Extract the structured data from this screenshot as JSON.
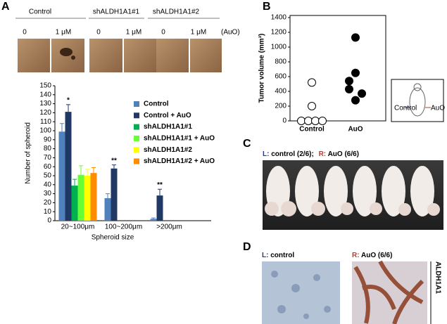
{
  "panel_labels": [
    "A",
    "B",
    "C",
    "D"
  ],
  "panel_a": {
    "groups": [
      {
        "label": "Control",
        "doses": [
          "0",
          "1 μM"
        ]
      },
      {
        "label": "shALDH1A1#1",
        "doses": [
          "0",
          "1 μM"
        ]
      },
      {
        "label": "shALDH1A1#2",
        "doses": [
          "0",
          "1 μM"
        ]
      }
    ],
    "treatment": "(AuO)"
  },
  "chart_data": [
    {
      "type": "bar",
      "y_label": "Number of spheroid",
      "x_label": "Spheroid size",
      "categories": [
        "20~100μm",
        "100~200μm",
        ">200μm"
      ],
      "annotations": [
        "*",
        "**",
        "**"
      ],
      "ylim": [
        0,
        150
      ],
      "yticks": [
        0,
        10,
        20,
        30,
        40,
        50,
        60,
        70,
        80,
        90,
        100,
        110,
        120,
        130,
        140,
        150
      ],
      "series": [
        {
          "name": "Control",
          "color": "#4f81bd",
          "values": [
            99,
            25,
            2
          ],
          "errors": [
            9,
            5,
            1
          ]
        },
        {
          "name": "Control + AuO",
          "color": "#1f3864",
          "values": [
            121,
            58,
            28
          ],
          "errors": [
            8,
            4,
            7
          ]
        },
        {
          "name": "shALDH1A1#1",
          "color": "#00b050",
          "values": [
            39,
            null,
            null
          ],
          "errors": [
            7,
            null,
            null
          ]
        },
        {
          "name": "shALDH1A1#1 + AuO",
          "color": "#66ff33",
          "values": [
            51,
            null,
            null
          ],
          "errors": [
            10,
            null,
            null
          ]
        },
        {
          "name": "shALDH1A1#2",
          "color": "#ffff00",
          "values": [
            50,
            null,
            null
          ],
          "errors": [
            7,
            null,
            null
          ]
        },
        {
          "name": "shALDH1A1#2 + AuO",
          "color": "#ff8c00",
          "values": [
            53,
            null,
            null
          ],
          "errors": [
            6,
            null,
            null
          ]
        }
      ]
    },
    {
      "type": "dot",
      "y_label": "Tumor volume (mm³)",
      "categories": [
        "Control",
        "AuO"
      ],
      "values": [
        [
          520,
          200,
          0,
          0,
          0,
          0
        ],
        [
          1130,
          650,
          540,
          430,
          370,
          280
        ]
      ],
      "markers": [
        "open",
        "filled"
      ],
      "ylim": [
        0,
        1400
      ],
      "yticks": [
        0,
        200,
        400,
        600,
        800,
        1000,
        1200,
        1400
      ]
    }
  ],
  "inset": {
    "left": "Control",
    "right": "AuO"
  },
  "panel_c": {
    "l_key": "L:",
    "l_text": "control (2/6);",
    "r_key": "R:",
    "r_text": "AuO (6/6)"
  },
  "panel_d": {
    "l_key": "L:",
    "l_text": "control",
    "r_key": "R:",
    "r_text": "AuO (6/6)",
    "marker": "ALDH1A1"
  }
}
